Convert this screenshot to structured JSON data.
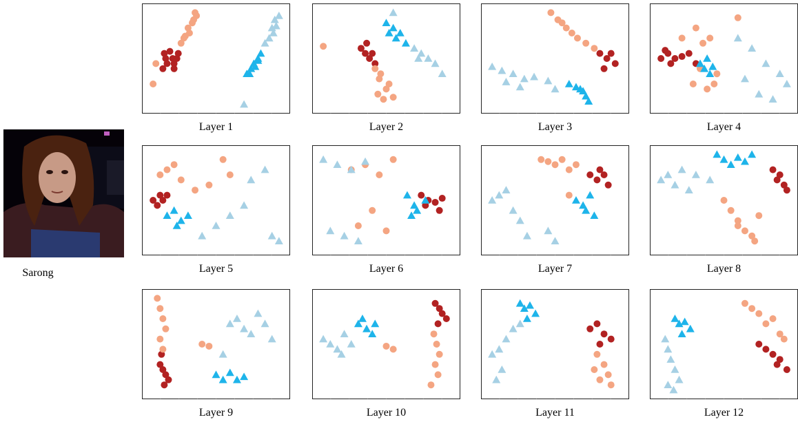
{
  "image": {
    "caption": "Sarong",
    "description_icon": "portrait-photo"
  },
  "colors": {
    "dark_red": "#b22222",
    "salmon": "#f4a582",
    "light_blue": "#a6d0e4",
    "deep_sky_blue": "#1eb4ea",
    "highlight_green": "#c8e45a",
    "marker_red": "#e00000"
  },
  "chart_data": [
    {
      "type": "scatter",
      "title": "Layer 1",
      "shapes": [
        {
          "shape": "circle",
          "color": "dark_red",
          "cx": [
            0.19,
            0.13,
            0.2,
            0.15,
            0.22,
            0.12,
            0.17,
            0.23,
            0.14,
            0.2
          ],
          "cy": [
            0.5,
            0.45,
            0.55,
            0.55,
            0.5,
            0.6,
            0.43,
            0.45,
            0.5,
            0.6
          ]
        },
        {
          "shape": "circle",
          "color": "salmon",
          "cx": [
            0.27,
            0.3,
            0.33,
            0.36,
            0.25,
            0.31,
            0.34,
            0.28,
            0.05,
            0.07,
            0.35
          ],
          "cy": [
            0.3,
            0.2,
            0.15,
            0.08,
            0.35,
            0.25,
            0.12,
            0.28,
            0.75,
            0.55,
            0.05
          ]
        },
        {
          "shape": "triangle",
          "color": "deep_sky_blue",
          "cx": [
            0.75,
            0.77,
            0.8,
            0.82,
            0.74,
            0.78,
            0.8,
            0.72
          ],
          "cy": [
            0.6,
            0.55,
            0.5,
            0.45,
            0.65,
            0.58,
            0.52,
            0.65
          ]
        },
        {
          "shape": "triangle",
          "color": "light_blue",
          "cx": [
            0.9,
            0.92,
            0.95,
            0.88,
            0.93,
            0.91,
            0.85,
            0.7
          ],
          "cy": [
            0.2,
            0.12,
            0.08,
            0.3,
            0.18,
            0.25,
            0.35,
            0.95
          ]
        }
      ]
    },
    {
      "type": "scatter",
      "title": "Layer 2",
      "shapes": [
        {
          "shape": "circle",
          "color": "dark_red",
          "cx": [
            0.32,
            0.35,
            0.38,
            0.4,
            0.42,
            0.36
          ],
          "cy": [
            0.4,
            0.45,
            0.5,
            0.45,
            0.55,
            0.35
          ]
        },
        {
          "shape": "circle",
          "color": "salmon",
          "cx": [
            0.42,
            0.45,
            0.5,
            0.48,
            0.46,
            0.05,
            0.52,
            0.55,
            0.44
          ],
          "cy": [
            0.6,
            0.7,
            0.8,
            0.9,
            0.65,
            0.38,
            0.75,
            0.88,
            0.85
          ]
        },
        {
          "shape": "triangle",
          "color": "deep_sky_blue",
          "cx": [
            0.5,
            0.55,
            0.6,
            0.57,
            0.64,
            0.52
          ],
          "cy": [
            0.15,
            0.2,
            0.25,
            0.3,
            0.35,
            0.25
          ]
        },
        {
          "shape": "triangle",
          "color": "light_blue",
          "cx": [
            0.7,
            0.75,
            0.8,
            0.85,
            0.9,
            0.73,
            0.55
          ],
          "cy": [
            0.4,
            0.45,
            0.5,
            0.55,
            0.65,
            0.5,
            0.05
          ]
        }
      ]
    },
    {
      "type": "scatter",
      "title": "Layer 3",
      "shapes": [
        {
          "shape": "circle",
          "color": "dark_red",
          "cx": [
            0.82,
            0.87,
            0.93,
            0.9,
            0.85
          ],
          "cy": [
            0.45,
            0.5,
            0.55,
            0.45,
            0.6
          ]
        },
        {
          "shape": "circle",
          "color": "salmon",
          "cx": [
            0.47,
            0.52,
            0.58,
            0.62,
            0.66,
            0.72,
            0.78,
            0.55
          ],
          "cy": [
            0.05,
            0.12,
            0.2,
            0.25,
            0.3,
            0.35,
            0.4,
            0.15
          ]
        },
        {
          "shape": "triangle",
          "color": "deep_sky_blue",
          "cx": [
            0.6,
            0.65,
            0.7,
            0.72,
            0.74,
            0.68
          ],
          "cy": [
            0.75,
            0.78,
            0.82,
            0.87,
            0.92,
            0.8
          ]
        },
        {
          "shape": "triangle",
          "color": "light_blue",
          "cx": [
            0.05,
            0.12,
            0.2,
            0.28,
            0.35,
            0.45,
            0.5,
            0.15,
            0.25
          ],
          "cy": [
            0.58,
            0.62,
            0.65,
            0.7,
            0.68,
            0.72,
            0.8,
            0.73,
            0.78
          ]
        }
      ]
    },
    {
      "type": "scatter",
      "title": "Layer 4",
      "shapes": [
        {
          "shape": "circle",
          "color": "dark_red",
          "cx": [
            0.05,
            0.1,
            0.15,
            0.2,
            0.25,
            0.3,
            0.12,
            0.08
          ],
          "cy": [
            0.5,
            0.45,
            0.5,
            0.48,
            0.45,
            0.55,
            0.55,
            0.42
          ]
        },
        {
          "shape": "circle",
          "color": "salmon",
          "cx": [
            0.3,
            0.35,
            0.4,
            0.45,
            0.38,
            0.43,
            0.2,
            0.28,
            0.6,
            0.33
          ],
          "cy": [
            0.2,
            0.35,
            0.3,
            0.65,
            0.8,
            0.75,
            0.3,
            0.75,
            0.1,
            0.6
          ]
        },
        {
          "shape": "triangle",
          "color": "deep_sky_blue",
          "cx": [
            0.33,
            0.36,
            0.4,
            0.38,
            0.42
          ],
          "cy": [
            0.55,
            0.6,
            0.65,
            0.5,
            0.58
          ]
        },
        {
          "shape": "triangle",
          "color": "light_blue",
          "cx": [
            0.6,
            0.7,
            0.8,
            0.9,
            0.95,
            0.65,
            0.75,
            0.85
          ],
          "cy": [
            0.3,
            0.4,
            0.55,
            0.65,
            0.75,
            0.7,
            0.85,
            0.9
          ]
        }
      ]
    },
    {
      "type": "scatter",
      "title": "Layer 5",
      "shapes": [
        {
          "shape": "circle",
          "color": "dark_red",
          "cx": [
            0.05,
            0.08,
            0.12,
            0.15,
            0.1
          ],
          "cy": [
            0.5,
            0.55,
            0.5,
            0.45,
            0.45
          ]
        },
        {
          "shape": "circle",
          "color": "salmon",
          "cx": [
            0.1,
            0.15,
            0.2,
            0.25,
            0.35,
            0.45,
            0.55,
            0.6
          ],
          "cy": [
            0.25,
            0.2,
            0.15,
            0.3,
            0.4,
            0.35,
            0.1,
            0.25
          ]
        },
        {
          "shape": "triangle",
          "color": "deep_sky_blue",
          "cx": [
            0.15,
            0.2,
            0.25,
            0.3,
            0.22
          ],
          "cy": [
            0.65,
            0.6,
            0.7,
            0.65,
            0.75
          ]
        },
        {
          "shape": "triangle",
          "color": "light_blue",
          "cx": [
            0.4,
            0.5,
            0.6,
            0.7,
            0.75,
            0.85,
            0.9,
            0.95
          ],
          "cy": [
            0.85,
            0.75,
            0.65,
            0.55,
            0.3,
            0.2,
            0.85,
            0.9
          ]
        }
      ]
    },
    {
      "type": "scatter",
      "title": "Layer 6",
      "shapes": [
        {
          "shape": "circle",
          "color": "dark_red",
          "cx": [
            0.75,
            0.8,
            0.85,
            0.9,
            0.88,
            0.78
          ],
          "cy": [
            0.45,
            0.5,
            0.52,
            0.48,
            0.6,
            0.55
          ]
        },
        {
          "shape": "circle",
          "color": "salmon",
          "cx": [
            0.25,
            0.35,
            0.45,
            0.55,
            0.5,
            0.4,
            0.3
          ],
          "cy": [
            0.2,
            0.15,
            0.25,
            0.1,
            0.8,
            0.6,
            0.75
          ]
        },
        {
          "shape": "triangle",
          "color": "deep_sky_blue",
          "cx": [
            0.65,
            0.7,
            0.72,
            0.78,
            0.68
          ],
          "cy": [
            0.45,
            0.55,
            0.6,
            0.5,
            0.65
          ]
        },
        {
          "shape": "triangle",
          "color": "light_blue",
          "cx": [
            0.05,
            0.15,
            0.25,
            0.35,
            0.1,
            0.2,
            0.3
          ],
          "cy": [
            0.1,
            0.15,
            0.2,
            0.12,
            0.8,
            0.85,
            0.9
          ]
        }
      ]
    },
    {
      "type": "scatter",
      "title": "Layer 7",
      "shapes": [
        {
          "shape": "circle",
          "color": "dark_red",
          "cx": [
            0.75,
            0.8,
            0.85,
            0.88,
            0.82
          ],
          "cy": [
            0.25,
            0.3,
            0.25,
            0.35,
            0.2
          ]
        },
        {
          "shape": "circle",
          "color": "salmon",
          "cx": [
            0.4,
            0.45,
            0.5,
            0.55,
            0.6,
            0.65,
            0.6
          ],
          "cy": [
            0.1,
            0.12,
            0.15,
            0.1,
            0.2,
            0.15,
            0.45
          ]
        },
        {
          "shape": "triangle",
          "color": "deep_sky_blue",
          "cx": [
            0.65,
            0.7,
            0.72,
            0.75,
            0.78
          ],
          "cy": [
            0.5,
            0.55,
            0.6,
            0.45,
            0.65
          ]
        },
        {
          "shape": "triangle",
          "color": "light_blue",
          "cx": [
            0.05,
            0.1,
            0.15,
            0.2,
            0.25,
            0.3,
            0.45,
            0.5
          ],
          "cy": [
            0.5,
            0.45,
            0.4,
            0.6,
            0.7,
            0.85,
            0.8,
            0.9
          ]
        }
      ]
    },
    {
      "type": "scatter",
      "title": "Layer 8",
      "shapes": [
        {
          "shape": "circle",
          "color": "dark_red",
          "cx": [
            0.85,
            0.9,
            0.93,
            0.95,
            0.88
          ],
          "cy": [
            0.2,
            0.25,
            0.35,
            0.4,
            0.3
          ]
        },
        {
          "shape": "circle",
          "color": "salmon",
          "cx": [
            0.5,
            0.55,
            0.6,
            0.65,
            0.7,
            0.72,
            0.75,
            0.6
          ],
          "cy": [
            0.5,
            0.6,
            0.7,
            0.8,
            0.85,
            0.9,
            0.65,
            0.75
          ]
        },
        {
          "shape": "triangle",
          "color": "deep_sky_blue",
          "cx": [
            0.45,
            0.5,
            0.55,
            0.6,
            0.65,
            0.7
          ],
          "cy": [
            0.05,
            0.1,
            0.15,
            0.08,
            0.12,
            0.05
          ]
        },
        {
          "shape": "triangle",
          "color": "light_blue",
          "cx": [
            0.05,
            0.1,
            0.2,
            0.3,
            0.4,
            0.15,
            0.25
          ],
          "cy": [
            0.3,
            0.25,
            0.2,
            0.25,
            0.3,
            0.35,
            0.4
          ]
        }
      ]
    },
    {
      "type": "scatter",
      "title": "Layer 9",
      "shapes": [
        {
          "shape": "circle",
          "color": "dark_red",
          "cx": [
            0.1,
            0.12,
            0.14,
            0.16,
            0.11,
            0.13
          ],
          "cy": [
            0.7,
            0.75,
            0.8,
            0.85,
            0.6,
            0.9
          ]
        },
        {
          "shape": "circle",
          "color": "salmon",
          "cx": [
            0.08,
            0.1,
            0.12,
            0.14,
            0.1,
            0.12,
            0.4,
            0.45
          ],
          "cy": [
            0.05,
            0.15,
            0.25,
            0.35,
            0.45,
            0.55,
            0.5,
            0.52
          ]
        },
        {
          "shape": "triangle",
          "color": "deep_sky_blue",
          "cx": [
            0.5,
            0.55,
            0.6,
            0.65,
            0.7
          ],
          "cy": [
            0.8,
            0.85,
            0.78,
            0.85,
            0.82
          ]
        },
        {
          "shape": "triangle",
          "color": "light_blue",
          "cx": [
            0.6,
            0.65,
            0.7,
            0.75,
            0.8,
            0.85,
            0.9,
            0.55
          ],
          "cy": [
            0.3,
            0.25,
            0.35,
            0.4,
            0.2,
            0.3,
            0.45,
            0.6
          ]
        }
      ]
    },
    {
      "type": "scatter",
      "title": "Layer 10",
      "shapes": [
        {
          "shape": "circle",
          "color": "dark_red",
          "cx": [
            0.85,
            0.88,
            0.9,
            0.93,
            0.87
          ],
          "cy": [
            0.1,
            0.15,
            0.2,
            0.25,
            0.3
          ]
        },
        {
          "shape": "circle",
          "color": "salmon",
          "cx": [
            0.84,
            0.86,
            0.88,
            0.85,
            0.87,
            0.82,
            0.55,
            0.5
          ],
          "cy": [
            0.4,
            0.5,
            0.6,
            0.7,
            0.8,
            0.9,
            0.55,
            0.52
          ]
        },
        {
          "shape": "triangle",
          "color": "deep_sky_blue",
          "cx": [
            0.3,
            0.33,
            0.36,
            0.4,
            0.42
          ],
          "cy": [
            0.3,
            0.25,
            0.35,
            0.4,
            0.3
          ]
        },
        {
          "shape": "triangle",
          "color": "light_blue",
          "cx": [
            0.05,
            0.1,
            0.15,
            0.2,
            0.25,
            0.18
          ],
          "cy": [
            0.45,
            0.5,
            0.55,
            0.4,
            0.5,
            0.6
          ]
        }
      ]
    },
    {
      "type": "scatter",
      "title": "Layer 11",
      "shapes": [
        {
          "shape": "circle",
          "color": "dark_red",
          "cx": [
            0.75,
            0.8,
            0.85,
            0.9,
            0.82
          ],
          "cy": [
            0.35,
            0.3,
            0.4,
            0.45,
            0.5
          ]
        },
        {
          "shape": "circle",
          "color": "salmon",
          "cx": [
            0.8,
            0.85,
            0.88,
            0.9,
            0.82,
            0.78
          ],
          "cy": [
            0.6,
            0.7,
            0.8,
            0.9,
            0.85,
            0.75
          ]
        },
        {
          "shape": "triangle",
          "color": "deep_sky_blue",
          "cx": [
            0.25,
            0.28,
            0.32,
            0.36,
            0.3
          ],
          "cy": [
            0.1,
            0.15,
            0.12,
            0.2,
            0.25
          ]
        },
        {
          "shape": "triangle",
          "color": "light_blue",
          "cx": [
            0.05,
            0.1,
            0.15,
            0.2,
            0.25,
            0.12,
            0.08
          ],
          "cy": [
            0.6,
            0.55,
            0.45,
            0.35,
            0.3,
            0.75,
            0.85
          ]
        }
      ]
    },
    {
      "type": "scatter",
      "title": "Layer 12",
      "shapes": [
        {
          "shape": "circle",
          "color": "dark_red",
          "cx": [
            0.75,
            0.8,
            0.85,
            0.9,
            0.95,
            0.88
          ],
          "cy": [
            0.5,
            0.55,
            0.6,
            0.65,
            0.75,
            0.7
          ]
        },
        {
          "shape": "circle",
          "color": "salmon",
          "cx": [
            0.65,
            0.7,
            0.75,
            0.8,
            0.85,
            0.9,
            0.93
          ],
          "cy": [
            0.1,
            0.15,
            0.2,
            0.3,
            0.25,
            0.4,
            0.45
          ]
        },
        {
          "shape": "triangle",
          "color": "deep_sky_blue",
          "cx": [
            0.15,
            0.18,
            0.22,
            0.26,
            0.2
          ],
          "cy": [
            0.25,
            0.3,
            0.28,
            0.35,
            0.4
          ]
        },
        {
          "shape": "triangle",
          "color": "light_blue",
          "cx": [
            0.08,
            0.1,
            0.12,
            0.15,
            0.18,
            0.1,
            0.14
          ],
          "cy": [
            0.45,
            0.55,
            0.65,
            0.75,
            0.85,
            0.9,
            0.95
          ]
        }
      ]
    }
  ]
}
